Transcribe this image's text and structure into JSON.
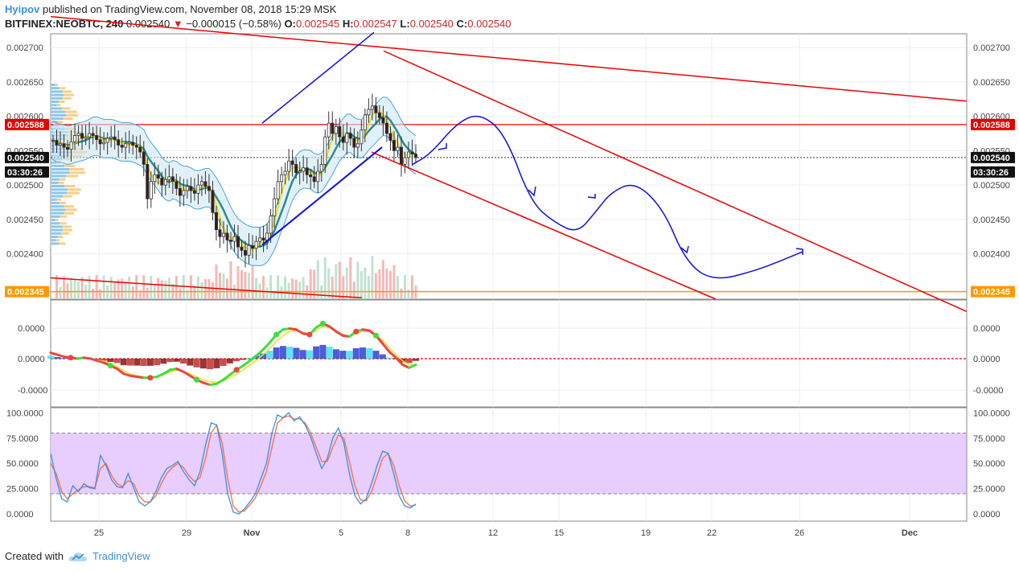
{
  "header": {
    "author": "Hyipov",
    "published_text": "published on TradingView.com, November 08, 2018 15:29 MSK",
    "symbol": "BITFINEX:NEOBTC, 240",
    "last": "0.002540",
    "change_arrow": "▼",
    "change": "−0.000015 (−0.58%)",
    "o_label": "O:",
    "o_value": "0.002545",
    "h_label": "H:",
    "h_value": "0.002547",
    "l_label": "L:",
    "l_value": "0.002540",
    "c_label": "C:",
    "c_value": "0.002540"
  },
  "footer": {
    "created_with": "Created with",
    "brand": "TradingView",
    "logo_icon": "tradingview-cloud-icon"
  },
  "colors": {
    "up": "#26a69a",
    "down": "#ef5350",
    "red_line": "#f00000",
    "blue_path": "#1010dd",
    "orange": "#ff9800",
    "red_badge": "#e60000",
    "stoch_band": "#e6c8ff",
    "candle_up": "#ffffff",
    "candle_down": "#3a1a1a"
  },
  "chart_data": [
    {
      "type": "candlestick",
      "pane": "price",
      "y_ticks": [
        "0.002700",
        "0.002650",
        "0.002600",
        "0.002550",
        "0.002500",
        "0.002450",
        "0.002400"
      ],
      "ylim": [
        0.002334,
        0.00272
      ],
      "x_ticks": [
        "25",
        "29",
        "Nov",
        "5",
        "8",
        "12",
        "15",
        "19",
        "22",
        "26",
        "Dec"
      ],
      "price_labels": {
        "resistance": "0.002588",
        "support": "0.002345",
        "last": "0.002540",
        "countdown": "03:30:26"
      },
      "levels": {
        "resistance": 0.002588,
        "support": 0.002345,
        "last": 0.00254
      },
      "closes": [
        0.002565,
        0.002558,
        0.00256,
        0.002555,
        0.002552,
        0.002563,
        0.002572,
        0.002575,
        0.002568,
        0.00257,
        0.002575,
        0.002572,
        0.002566,
        0.00256,
        0.002562,
        0.002568,
        0.00257,
        0.002566,
        0.002558,
        0.002555,
        0.00256,
        0.002562,
        0.002558,
        0.002555,
        0.002548,
        0.00253,
        0.00248,
        0.002505,
        0.002515,
        0.00251,
        0.0025,
        0.002508,
        0.002512,
        0.002505,
        0.002495,
        0.002485,
        0.002492,
        0.002498,
        0.002492,
        0.002488,
        0.0025,
        0.002505,
        0.002498,
        0.002492,
        0.00246,
        0.002435,
        0.002425,
        0.00243,
        0.00242,
        0.002418,
        0.002425,
        0.00241,
        0.002405,
        0.002398,
        0.002412,
        0.002408,
        0.002418,
        0.002423,
        0.00242,
        0.00243,
        0.002455,
        0.00248,
        0.002505,
        0.002515,
        0.00252,
        0.002535,
        0.00253,
        0.002518,
        0.00252,
        0.002525,
        0.002515,
        0.002512,
        0.002505,
        0.00252,
        0.00253,
        0.00257,
        0.00259,
        0.002575,
        0.002585,
        0.00257,
        0.002562,
        0.002575,
        0.002568,
        0.002555,
        0.00256,
        0.00258,
        0.002602,
        0.00261,
        0.002615,
        0.002605,
        0.002598,
        0.00259,
        0.002575,
        0.002565,
        0.00255,
        0.002555,
        0.00253,
        0.00254,
        0.002548,
        0.002545,
        0.00254
      ],
      "forecast_path": [
        0.00253,
        0.002545,
        0.00259,
        0.002605,
        0.002575,
        0.002475,
        0.002445,
        0.00243,
        0.00246,
        0.00249,
        0.002505,
        0.002465,
        0.00239,
        0.00236,
        0.002375,
        0.002403
      ],
      "volume_note": "volume histogram overlay at bottom of price pane"
    },
    {
      "type": "line",
      "pane": "oscillator",
      "y_ticks": [
        "0.0000",
        "0.0000",
        "-0.0000"
      ],
      "zero_line": 0,
      "series_fast": [
        0.3,
        0.2,
        0.1,
        0.05,
        0.0,
        0.05,
        0.0,
        -0.1,
        -0.2,
        -0.35,
        -0.5,
        -0.75,
        -0.85,
        -0.9,
        -0.95,
        -0.95,
        -0.9,
        -0.75,
        -0.55,
        -0.5,
        -0.65,
        -0.85,
        -1.05,
        -1.2,
        -1.3,
        -1.25,
        -1.05,
        -0.8,
        -0.55,
        -0.35,
        -0.1,
        0.15,
        0.45,
        0.8,
        1.2,
        1.45,
        1.5,
        1.45,
        1.25,
        1.2,
        1.55,
        1.75,
        1.6,
        1.35,
        1.15,
        1.1,
        1.35,
        1.45,
        1.4,
        1.15,
        0.75,
        0.35,
        0.05,
        -0.3,
        -0.45,
        -0.3
      ],
      "series_slow": [
        0.2,
        0.18,
        0.12,
        0.08,
        0.04,
        0.03,
        0.02,
        -0.05,
        -0.12,
        -0.25,
        -0.4,
        -0.6,
        -0.75,
        -0.85,
        -0.9,
        -0.92,
        -0.9,
        -0.8,
        -0.65,
        -0.58,
        -0.62,
        -0.75,
        -0.9,
        -1.05,
        -1.15,
        -1.18,
        -1.1,
        -0.95,
        -0.75,
        -0.55,
        -0.32,
        -0.08,
        0.2,
        0.5,
        0.85,
        1.15,
        1.35,
        1.4,
        1.3,
        1.25,
        1.4,
        1.6,
        1.55,
        1.4,
        1.2,
        1.12,
        1.25,
        1.35,
        1.35,
        1.2,
        0.9,
        0.55,
        0.2,
        -0.1,
        -0.3,
        -0.3
      ]
    },
    {
      "type": "line",
      "pane": "stochastic",
      "y_ticks": [
        "100.0000",
        "75.0000",
        "50.0000",
        "25.0000",
        "0.0000"
      ],
      "ylim": [
        -7,
        105
      ],
      "band": [
        20,
        80
      ],
      "k": [
        60,
        35,
        15,
        12,
        28,
        22,
        30,
        26,
        25,
        58,
        48,
        34,
        27,
        26,
        40,
        26,
        12,
        8,
        12,
        22,
        36,
        45,
        48,
        52,
        42,
        34,
        28,
        42,
        68,
        90,
        88,
        60,
        20,
        2,
        0,
        5,
        12,
        20,
        35,
        50,
        80,
        98,
        95,
        100,
        92,
        96,
        88,
        76,
        60,
        45,
        55,
        75,
        85,
        70,
        40,
        18,
        10,
        15,
        30,
        48,
        62,
        60,
        40,
        18,
        8,
        6,
        10
      ],
      "d": [
        50,
        40,
        22,
        15,
        20,
        24,
        27,
        27,
        26,
        45,
        50,
        38,
        30,
        27,
        33,
        30,
        18,
        12,
        12,
        18,
        30,
        40,
        46,
        50,
        46,
        38,
        32,
        36,
        55,
        80,
        88,
        70,
        35,
        8,
        2,
        3,
        9,
        16,
        28,
        42,
        66,
        90,
        95,
        97,
        94,
        94,
        90,
        80,
        66,
        52,
        52,
        66,
        78,
        75,
        52,
        28,
        14,
        13,
        22,
        38,
        55,
        60,
        48,
        28,
        13,
        8,
        9
      ]
    }
  ]
}
